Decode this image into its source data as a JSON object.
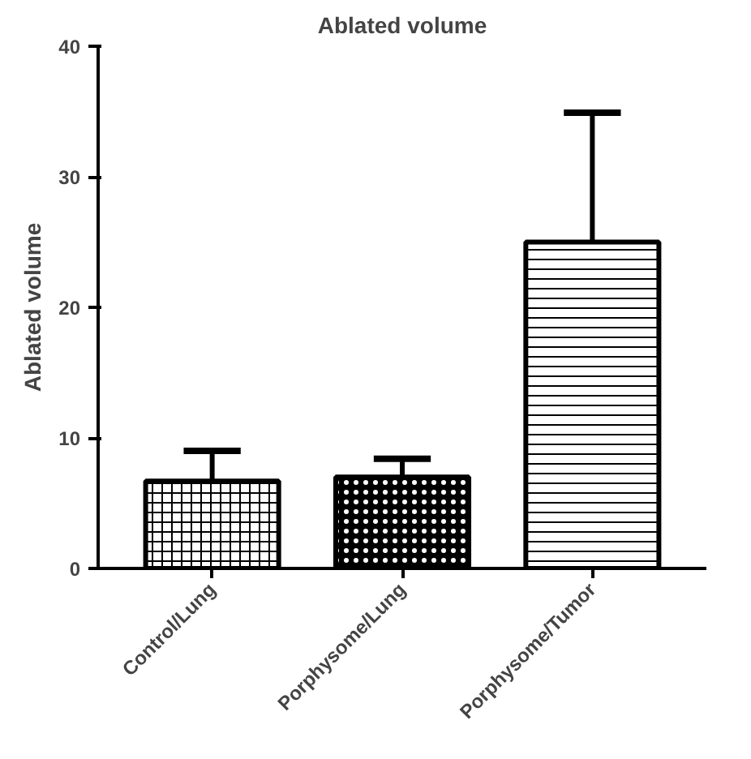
{
  "chart_data": {
    "type": "bar",
    "title": "Ablated volume",
    "ylabel": "Ablated volume",
    "categories": [
      "Control/Lung",
      "Porphysome/Lung",
      "Porphysome/Tumor"
    ],
    "values": [
      6.7,
      7.0,
      25.0
    ],
    "errors": [
      [
        6.7,
        9.0
      ],
      [
        7.0,
        8.4
      ],
      [
        25.0,
        34.9
      ]
    ],
    "color": "#000000",
    "ylim": [
      0,
      40
    ],
    "yticks": [
      0,
      10,
      20,
      30,
      40
    ],
    "grid": false
  }
}
